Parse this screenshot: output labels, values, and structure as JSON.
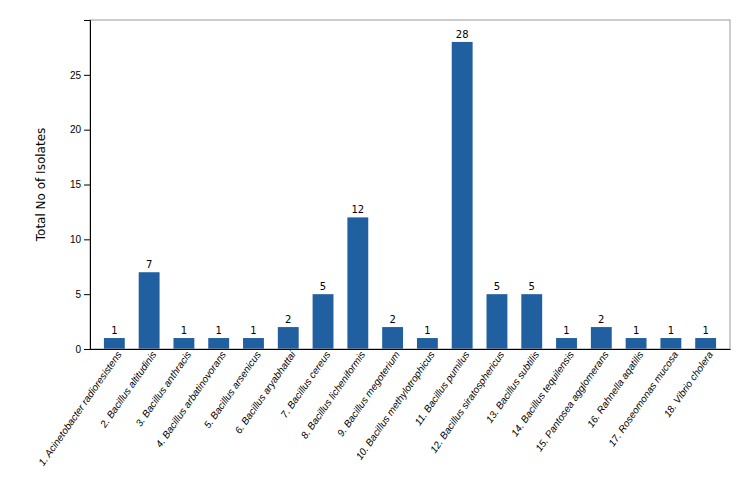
{
  "chart_data": {
    "type": "bar",
    "categories": [
      "1. Acinetobacter radioresistens",
      "2. Bacillus altitudinis",
      "3. Bacillus anthracis",
      "4. Bacillus arbatinovorans",
      "5. Bacillus arsenicus",
      "6. Bacillus aryabhattai",
      "7. Bacillus cereus",
      "8. Bacillus licheniformis",
      "9. Bacillus megoterium",
      "10. Bacillus methylotrophicus",
      "11. Bacillus pumilus",
      "12. Bacillus siratosphericus",
      "13. Bacillus subtilis",
      "14. Bacillus tequilensis",
      "15. Pantosea agglomerans",
      "16. Rahnella aqatilis",
      "17. Roseomonas mucosa",
      "18. Vibrio cholera"
    ],
    "values": [
      1,
      7,
      1,
      1,
      1,
      2,
      5,
      12,
      2,
      1,
      28,
      5,
      5,
      1,
      2,
      1,
      1,
      1
    ],
    "color": "#2060a0",
    "ylabel": "Total No of Isolates",
    "ylim": [
      0,
      30
    ],
    "yticks": [
      0,
      5,
      10,
      15,
      20,
      25
    ],
    "grid": false,
    "data_labels": true
  }
}
